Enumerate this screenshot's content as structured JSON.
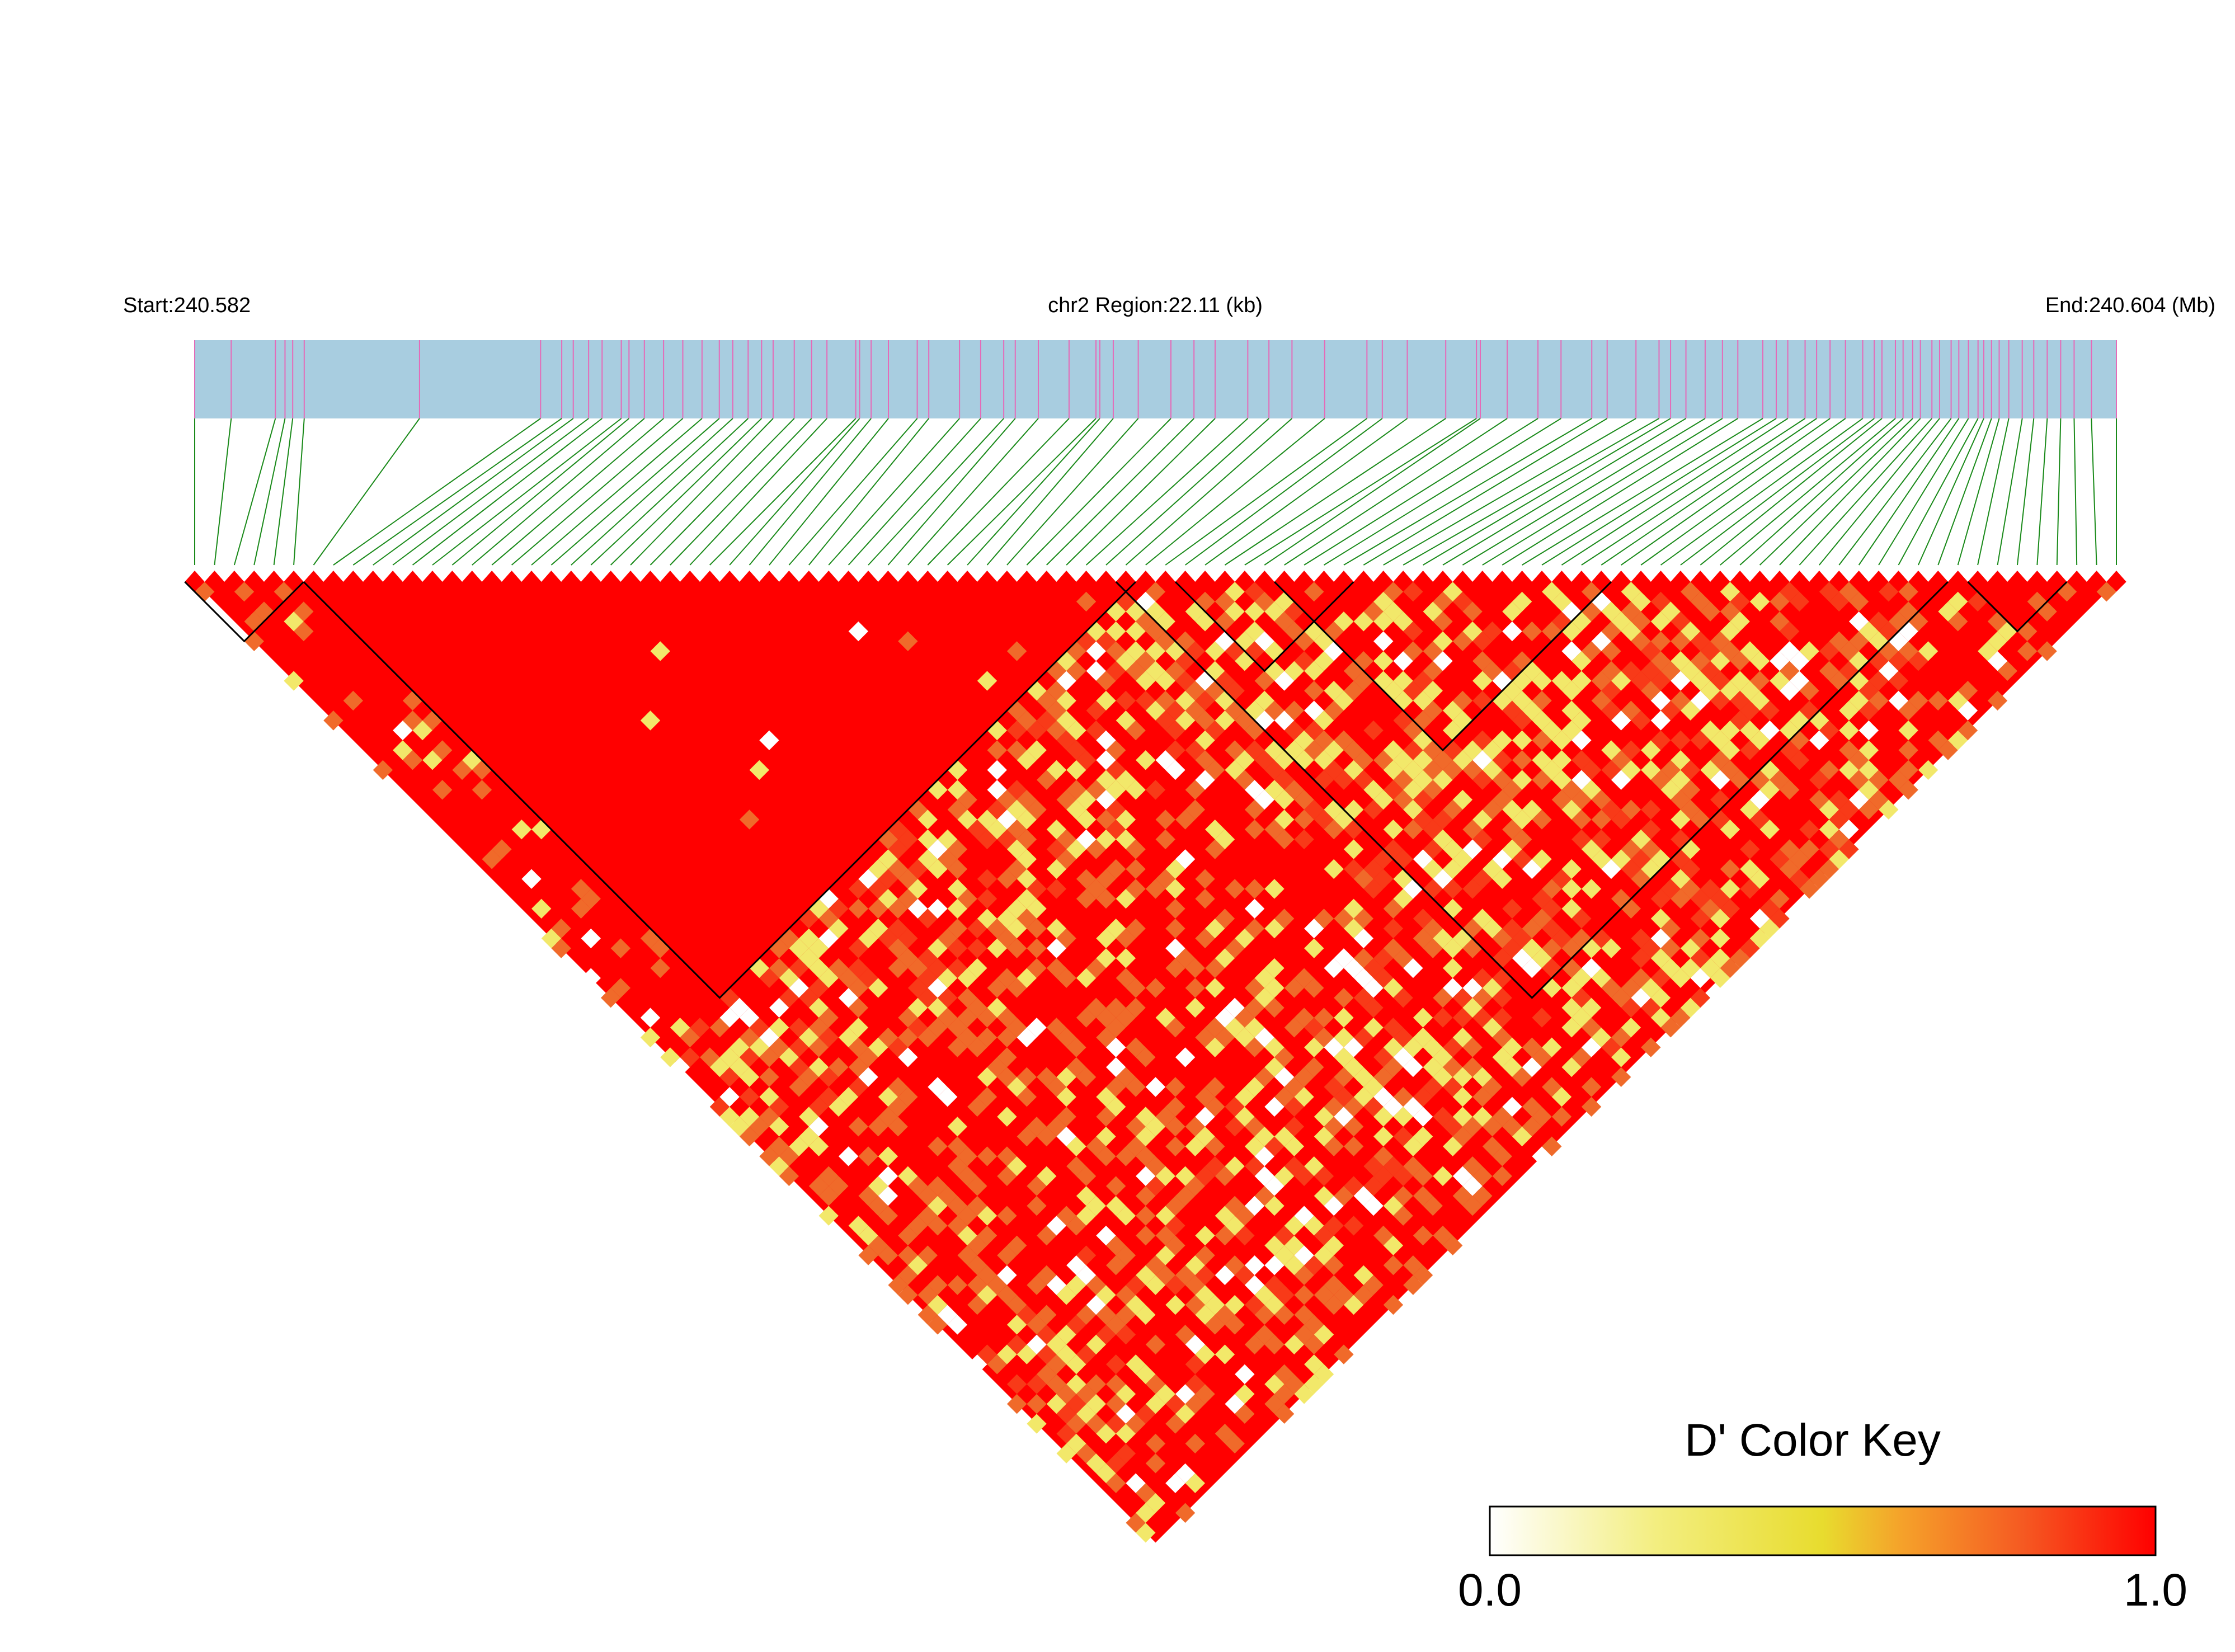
{
  "header": {
    "start_label": "Start:240.582",
    "region_label": "chr2 Region:22.11 (kb)",
    "end_label": "End:240.604 (Mb)"
  },
  "chart_data": {
    "type": "heatmap",
    "subtype": "linkage-disequilibrium-triangle",
    "statistic": "D'",
    "chromosome": "chr2",
    "start_mb": 240.582,
    "end_mb": 240.604,
    "region_kb": 22.11,
    "snp_count": 98,
    "snp_relative_positions": [
      0.0,
      0.019,
      0.042,
      0.047,
      0.051,
      0.057,
      0.117,
      0.18,
      0.191,
      0.197,
      0.205,
      0.212,
      0.222,
      0.226,
      0.234,
      0.244,
      0.254,
      0.264,
      0.273,
      0.28,
      0.288,
      0.295,
      0.301,
      0.312,
      0.321,
      0.329,
      0.344,
      0.346,
      0.352,
      0.361,
      0.376,
      0.382,
      0.398,
      0.409,
      0.421,
      0.427,
      0.439,
      0.455,
      0.469,
      0.471,
      0.478,
      0.491,
      0.508,
      0.52,
      0.531,
      0.548,
      0.559,
      0.571,
      0.588,
      0.61,
      0.618,
      0.631,
      0.651,
      0.667,
      0.669,
      0.683,
      0.699,
      0.711,
      0.727,
      0.735,
      0.75,
      0.762,
      0.768,
      0.776,
      0.786,
      0.795,
      0.803,
      0.816,
      0.823,
      0.829,
      0.838,
      0.844,
      0.851,
      0.859,
      0.868,
      0.874,
      0.878,
      0.885,
      0.889,
      0.894,
      0.898,
      0.904,
      0.908,
      0.914,
      0.918,
      0.923,
      0.928,
      0.931,
      0.935,
      0.939,
      0.944,
      0.951,
      0.957,
      0.964,
      0.971,
      0.978,
      0.987,
      1.0
    ],
    "ld_blocks": [
      {
        "first_snp": 1,
        "last_snp": 6
      },
      {
        "first_snp": 7,
        "last_snp": 48
      },
      {
        "first_snp": 48,
        "last_snp": 89
      },
      {
        "first_snp": 51,
        "last_snp": 59
      },
      {
        "first_snp": 56,
        "last_snp": 72
      },
      {
        "first_snp": 91,
        "last_snp": 95
      }
    ],
    "dprime_summary": {
      "block_7_48": "mostly 1.0 (red)",
      "block_48_89": "mixed 0.3-1.0",
      "outside_blocks": "mixed 0.0-1.0"
    },
    "color_key": {
      "title": "D' Color Key",
      "min_label": "0.0",
      "max_label": "1.0",
      "min": 0.0,
      "max": 1.0,
      "stops": [
        "#ffffff",
        "#f3ee80",
        "#e8dc2e",
        "#f5a12a",
        "#f55a22",
        "#ff0000"
      ]
    },
    "colors": {
      "track_fill": "#a8cde0",
      "snp_tick": "#e56ab8",
      "connector": "#1a8a1a",
      "high": "#ff0000",
      "mid": "#f06a2a",
      "low": "#f2e86a",
      "zero": "#ffffff"
    }
  }
}
